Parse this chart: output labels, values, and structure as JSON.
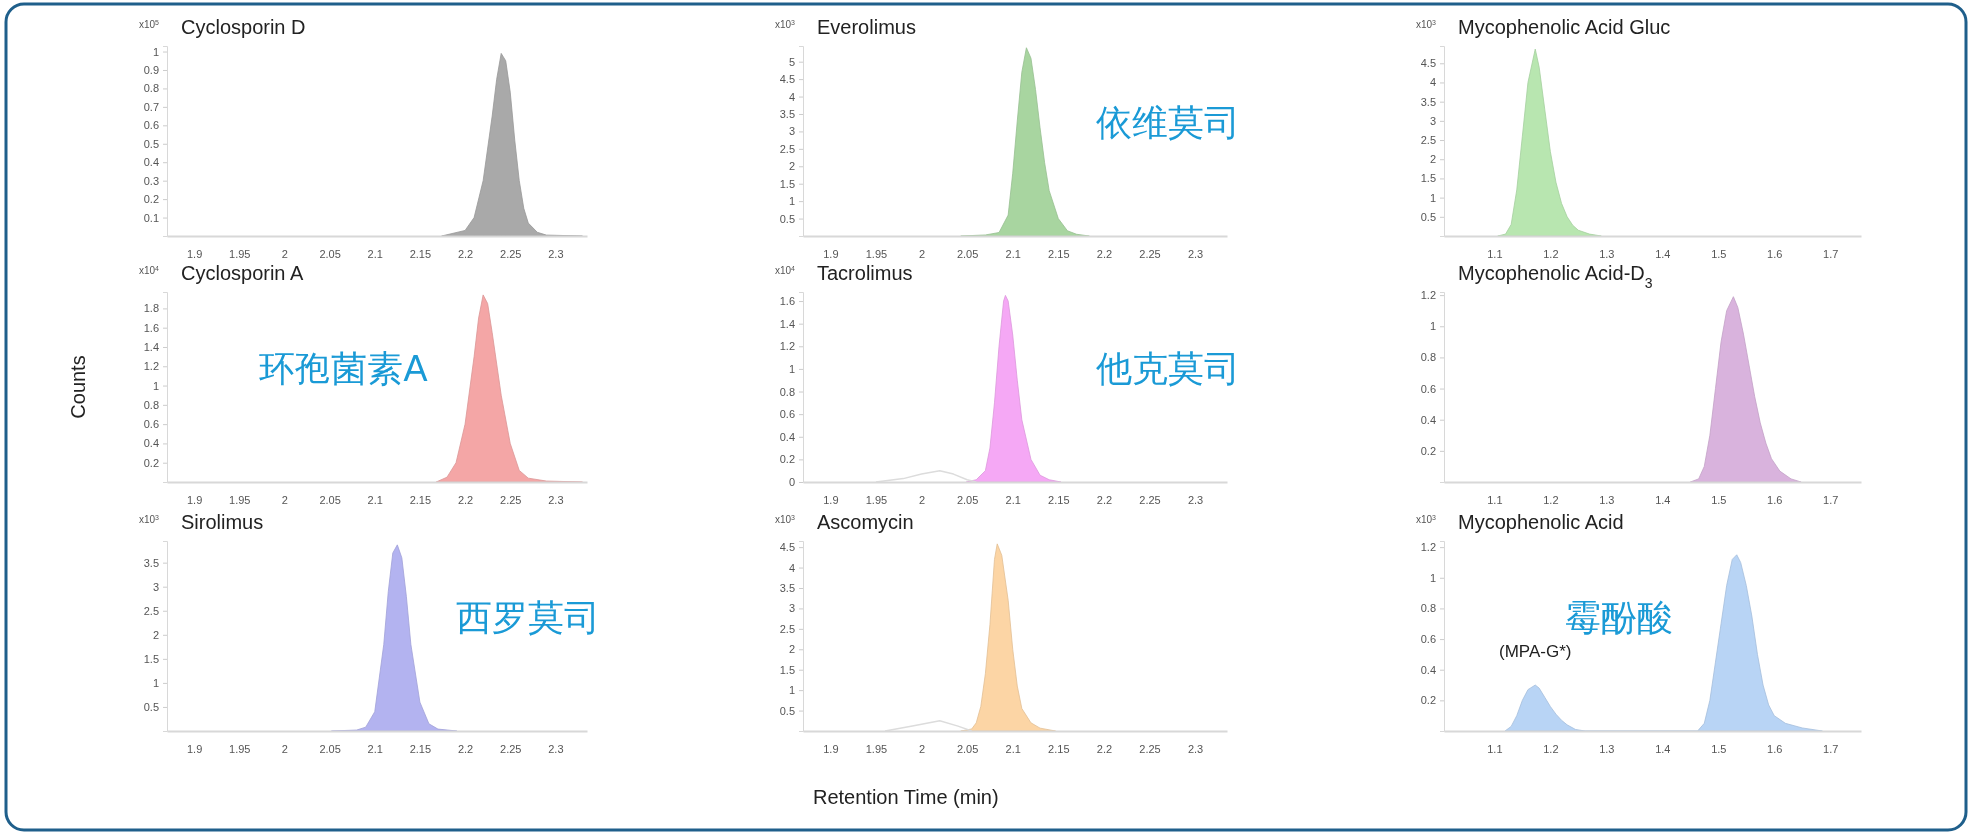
{
  "chart_data": [
    {
      "type": "area",
      "title": "Cyclosporin D",
      "subtitle": "x10$^{5}$",
      "xlim": [
        1.87,
        2.335
      ],
      "xticks": [
        1.9,
        1.95,
        2,
        2.05,
        2.1,
        2.15,
        2.2,
        2.25,
        2.3
      ],
      "ylim": [
        0,
        1.03
      ],
      "yticks": [
        0.1,
        0.2,
        0.3,
        0.4,
        0.5,
        0.6,
        0.7,
        0.8,
        0.9,
        1
      ],
      "series": [
        {
          "color": "#a9a9a9",
          "x": [
            2.174,
            2.2,
            2.21,
            2.22,
            2.23,
            2.235,
            2.24,
            2.245,
            2.25,
            2.255,
            2.26,
            2.265,
            2.27,
            2.28,
            2.29,
            2.33
          ],
          "values": [
            0,
            0.03,
            0.1,
            0.3,
            0.65,
            0.85,
            0.99,
            0.95,
            0.78,
            0.52,
            0.3,
            0.15,
            0.07,
            0.02,
            0.005,
            0
          ]
        }
      ]
    },
    {
      "type": "area",
      "title": "Everolimus",
      "subtitle": "x10$^{3}$",
      "annotations": [
        "依维莫司"
      ],
      "xlim": [
        1.87,
        2.335
      ],
      "xticks": [
        1.9,
        1.95,
        2,
        2.05,
        2.1,
        2.15,
        2.2,
        2.25,
        2.3
      ],
      "ylim": [
        0,
        5.45
      ],
      "yticks": [
        0.5,
        1,
        1.5,
        2,
        2.5,
        3,
        3.5,
        4,
        4.5,
        5
      ],
      "series": [
        {
          "color": "#a8d5a0",
          "x": [
            2.043,
            2.07,
            2.085,
            2.095,
            2.1,
            2.105,
            2.11,
            2.115,
            2.12,
            2.125,
            2.13,
            2.135,
            2.14,
            2.15,
            2.16,
            2.17,
            2.184
          ],
          "values": [
            0,
            0.03,
            0.1,
            0.6,
            1.8,
            3.3,
            4.7,
            5.4,
            5.1,
            4.2,
            3.1,
            2.1,
            1.3,
            0.5,
            0.15,
            0.05,
            0
          ]
        }
      ]
    },
    {
      "type": "area",
      "title": "Mycophenolic Acid Gluc",
      "subtitle": "x10$^{3}$",
      "xlim": [
        1.01,
        1.755
      ],
      "xticks": [
        1.1,
        1.2,
        1.3,
        1.4,
        1.5,
        1.6,
        1.7
      ],
      "ylim": [
        0,
        4.95
      ],
      "yticks": [
        0.5,
        1,
        1.5,
        2,
        2.5,
        3,
        3.5,
        4,
        4.5
      ],
      "series": [
        {
          "color": "#b8e6b0",
          "x": [
            1.106,
            1.12,
            1.13,
            1.14,
            1.15,
            1.16,
            1.173,
            1.18,
            1.19,
            1.2,
            1.21,
            1.22,
            1.23,
            1.24,
            1.25,
            1.27,
            1.291
          ],
          "values": [
            0,
            0.05,
            0.3,
            1.2,
            2.6,
            4,
            4.87,
            4.4,
            3.3,
            2.2,
            1.4,
            0.85,
            0.5,
            0.28,
            0.15,
            0.05,
            0
          ]
        }
      ]
    },
    {
      "type": "area",
      "title": "Cyclosporin A",
      "subtitle": "x10$^{4}$",
      "ylabel": "Counts",
      "annotations": [
        "环孢菌素A"
      ],
      "xlim": [
        1.87,
        2.335
      ],
      "xticks": [
        1.9,
        1.95,
        2,
        2.05,
        2.1,
        2.15,
        2.2,
        2.25,
        2.3
      ],
      "ylim": [
        0,
        1.97
      ],
      "yticks": [
        0.2,
        0.4,
        0.6,
        0.8,
        1,
        1.2,
        1.4,
        1.6,
        1.8
      ],
      "series": [
        {
          "color": "#f4a6a6",
          "x": [
            2.168,
            2.18,
            2.19,
            2.2,
            2.21,
            2.215,
            2.22,
            2.225,
            2.23,
            2.24,
            2.25,
            2.26,
            2.27,
            2.29,
            2.33
          ],
          "values": [
            0,
            0.05,
            0.2,
            0.6,
            1.3,
            1.7,
            1.94,
            1.85,
            1.55,
            0.9,
            0.4,
            0.12,
            0.04,
            0.01,
            0
          ]
        }
      ]
    },
    {
      "type": "area",
      "title": "Tacrolimus",
      "subtitle": "x10$^{4}$",
      "annotations": [
        "他克莫司"
      ],
      "xlim": [
        1.87,
        2.335
      ],
      "xticks": [
        1.9,
        1.95,
        2,
        2.05,
        2.1,
        2.15,
        2.2,
        2.25,
        2.3
      ],
      "ylim": [
        0,
        1.68
      ],
      "yticks": [
        0,
        0.2,
        0.4,
        0.6,
        0.8,
        1,
        1.2,
        1.4,
        1.6
      ],
      "series": [
        {
          "color": "#f5a8f5",
          "x": [
            2.049,
            2.06,
            2.07,
            2.075,
            2.08,
            2.085,
            2.09,
            2.092,
            2.095,
            2.1,
            2.105,
            2.11,
            2.12,
            2.13,
            2.14,
            2.153
          ],
          "values": [
            0,
            0.02,
            0.1,
            0.3,
            0.7,
            1.2,
            1.6,
            1.65,
            1.6,
            1.3,
            0.9,
            0.55,
            0.2,
            0.06,
            0.02,
            0
          ]
        },
        {
          "type": "line",
          "color": "#dcdcdc",
          "x": [
            1.95,
            1.98,
            2,
            2.02,
            2.035,
            2.05,
            2.06
          ],
          "values": [
            0,
            0.03,
            0.07,
            0.1,
            0.07,
            0.02,
            0
          ]
        }
      ]
    },
    {
      "type": "area",
      "title": "Mycophenolic Acid-D$_{3}$",
      "xlim": [
        1.01,
        1.755
      ],
      "xticks": [
        1.1,
        1.2,
        1.3,
        1.4,
        1.5,
        1.6,
        1.7
      ],
      "ylim": [
        0,
        1.22
      ],
      "yticks": [
        0.2,
        0.4,
        0.6,
        0.8,
        1,
        1.2
      ],
      "series": [
        {
          "color": "#d9b3dd",
          "x": [
            1.45,
            1.465,
            1.475,
            1.485,
            1.495,
            1.505,
            1.515,
            1.527,
            1.535,
            1.545,
            1.555,
            1.565,
            1.575,
            1.585,
            1.595,
            1.61,
            1.63,
            1.648
          ],
          "values": [
            0,
            0.02,
            0.1,
            0.3,
            0.6,
            0.9,
            1.1,
            1.19,
            1.12,
            0.95,
            0.75,
            0.55,
            0.38,
            0.25,
            0.15,
            0.07,
            0.02,
            0
          ]
        }
      ]
    },
    {
      "type": "area",
      "title": "Sirolimus",
      "subtitle": "x10$^{3}$",
      "annotations": [
        "西罗莫司"
      ],
      "xlim": [
        1.87,
        2.335
      ],
      "xticks": [
        1.9,
        1.95,
        2,
        2.05,
        2.1,
        2.15,
        2.2,
        2.25,
        2.3
      ],
      "ylim": [
        0,
        3.95
      ],
      "yticks": [
        0.5,
        1,
        1.5,
        2,
        2.5,
        3,
        3.5
      ],
      "series": [
        {
          "color": "#b3b3f0",
          "x": [
            2.052,
            2.08,
            2.09,
            2.1,
            2.11,
            2.115,
            2.12,
            2.125,
            2.13,
            2.135,
            2.14,
            2.15,
            2.16,
            2.17,
            2.191
          ],
          "values": [
            0,
            0.02,
            0.08,
            0.4,
            1.8,
            2.9,
            3.7,
            3.87,
            3.6,
            2.8,
            1.8,
            0.6,
            0.15,
            0.04,
            0
          ]
        }
      ]
    },
    {
      "type": "area",
      "title": "Ascomycin",
      "subtitle": "x10$^{3}$",
      "xlabel": "Retention Time (min)",
      "xlim": [
        1.87,
        2.335
      ],
      "xticks": [
        1.9,
        1.95,
        2,
        2.05,
        2.1,
        2.15,
        2.2,
        2.25,
        2.3
      ],
      "ylim": [
        0,
        4.65
      ],
      "yticks": [
        0.5,
        1,
        1.5,
        2,
        2.5,
        3,
        3.5,
        4,
        4.5
      ],
      "series": [
        {
          "color": "#fcd5a5",
          "x": [
            2.043,
            2.055,
            2.06,
            2.065,
            2.07,
            2.075,
            2.08,
            2.083,
            2.088,
            2.095,
            2.1,
            2.105,
            2.11,
            2.12,
            2.13,
            2.147
          ],
          "values": [
            0,
            0.05,
            0.2,
            0.6,
            1.4,
            2.6,
            4.2,
            4.58,
            4.3,
            3.2,
            2,
            1.1,
            0.55,
            0.2,
            0.07,
            0
          ]
        },
        {
          "type": "line",
          "color": "#dcdcdc",
          "x": [
            1.96,
            1.99,
            2.02,
            2.04,
            2.055
          ],
          "values": [
            0,
            0.12,
            0.25,
            0.12,
            0
          ]
        }
      ]
    },
    {
      "type": "area",
      "title": "Mycophenolic Acid",
      "subtitle": "x10$^{3}$",
      "annotations": [
        "霉酚酸",
        {
          "text": "(MPA-G*)",
          "x": 1.173,
          "y": 0.3
        }
      ],
      "xlim": [
        1.01,
        1.755
      ],
      "xticks": [
        1.1,
        1.2,
        1.3,
        1.4,
        1.5,
        1.6,
        1.7
      ],
      "ylim": [
        0,
        1.24
      ],
      "yticks": [
        0.2,
        0.4,
        0.6,
        0.8,
        1,
        1.2
      ],
      "series": [
        {
          "color": "#b8d4f5",
          "x": [
            1.119,
            1.13,
            1.14,
            1.15,
            1.16,
            1.173,
            1.18,
            1.19,
            1.2,
            1.21,
            1.22,
            1.23,
            1.245,
            1.262,
            1.463,
            1.475,
            1.485,
            1.495,
            1.505,
            1.515,
            1.525,
            1.533,
            1.54,
            1.55,
            1.56,
            1.57,
            1.58,
            1.59,
            1.6,
            1.62,
            1.65,
            1.686
          ],
          "values": [
            0,
            0.03,
            0.1,
            0.2,
            0.27,
            0.3,
            0.28,
            0.22,
            0.16,
            0.11,
            0.07,
            0.04,
            0.01,
            0,
            0,
            0.05,
            0.2,
            0.45,
            0.7,
            0.95,
            1.12,
            1.15,
            1.1,
            0.95,
            0.75,
            0.5,
            0.3,
            0.17,
            0.1,
            0.05,
            0.02,
            0
          ]
        }
      ]
    }
  ]
}
